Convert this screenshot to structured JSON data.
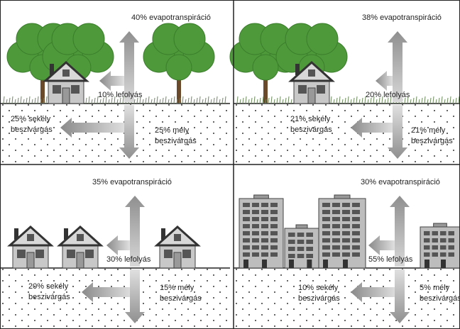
{
  "panels": [
    {
      "evapotranspiration": "40% evapotranspiráció",
      "runoff": "10% lefolyás",
      "shallow": [
        "25% sekély",
        "beszivárgás"
      ],
      "deep": [
        "25% mély",
        "beszivárgás"
      ]
    },
    {
      "evapotranspiration": "38% evapotranspiráció",
      "runoff": "20% lefolyás",
      "shallow": [
        "21% sekély",
        "beszivárgás"
      ],
      "deep": [
        "21% mély",
        "beszivárgás"
      ]
    },
    {
      "evapotranspiration": "35% evapotranspiráció",
      "runoff": "30% lefolyás",
      "shallow": [
        "20% sekély",
        "beszivárgás"
      ],
      "deep": [
        "15% mély",
        "beszivárgás"
      ]
    },
    {
      "evapotranspiration": "30% evapotranspiráció",
      "runoff": "55% lefolyás",
      "shallow": [
        "10% sekély",
        "beszivárgás"
      ],
      "deep": [
        "5% mély",
        "beszivárgás"
      ]
    }
  ]
}
